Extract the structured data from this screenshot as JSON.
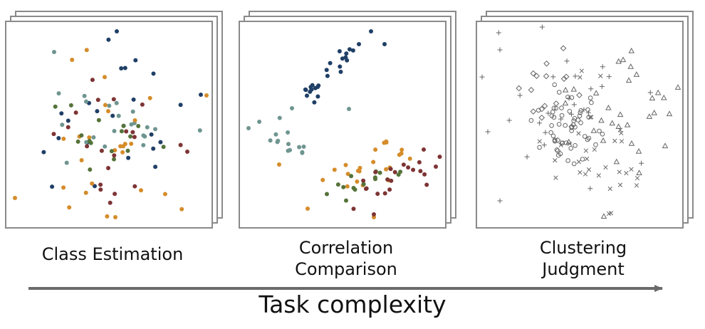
{
  "colors": {
    "frame": "#8a8a8a",
    "blue": "#1f3f66",
    "teal": "#6f9590",
    "orange": "#d58c2a",
    "green": "#55733a",
    "red": "#7e3434",
    "marker": "#666666",
    "arrow": "#6b6b6b"
  },
  "panels": [
    {
      "id": "class-estimation",
      "label_lines": [
        "Class Estimation"
      ]
    },
    {
      "id": "correlation-comparison",
      "label_lines": [
        "Correlation",
        "Comparison"
      ]
    },
    {
      "id": "clustering-judgment",
      "label_lines": [
        "Clustering",
        "Judgment"
      ]
    }
  ],
  "axis": {
    "label": "Task complexity"
  }
}
